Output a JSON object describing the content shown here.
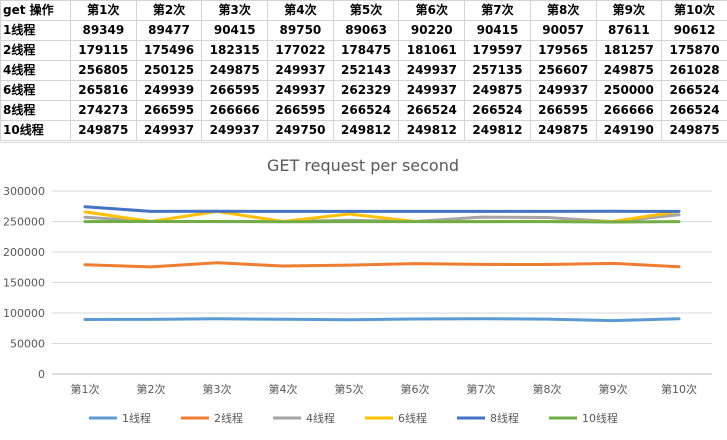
{
  "table": {
    "corner": "get 操作",
    "columns": [
      "第1次",
      "第2次",
      "第3次",
      "第4次",
      "第5次",
      "第6次",
      "第7次",
      "第8次",
      "第9次",
      "第10次"
    ],
    "rows": [
      {
        "label": "1线程",
        "values": [
          "89349",
          "89477",
          "90415",
          "89750",
          "89063",
          "90220",
          "90415",
          "90057",
          "87611",
          "90612"
        ]
      },
      {
        "label": "2线程",
        "values": [
          "179115",
          "175496",
          "182315",
          "177022",
          "178475",
          "181061",
          "179597",
          "179565",
          "181257",
          "175870"
        ]
      },
      {
        "label": "4线程",
        "values": [
          "256805",
          "250125",
          "249875",
          "249937",
          "252143",
          "249937",
          "257135",
          "256607",
          "249875",
          "261028"
        ]
      },
      {
        "label": "6线程",
        "values": [
          "265816",
          "249939",
          "266595",
          "249937",
          "262329",
          "249937",
          "249875",
          "249937",
          "250000",
          "266524"
        ]
      },
      {
        "label": "8线程",
        "values": [
          "274273",
          "266595",
          "266666",
          "266595",
          "266524",
          "266524",
          "266524",
          "266595",
          "266666",
          "266524"
        ]
      },
      {
        "label": "10线程",
        "values": [
          "249875",
          "249937",
          "249937",
          "249750",
          "249812",
          "249812",
          "249812",
          "249875",
          "249190",
          "249875"
        ]
      }
    ]
  },
  "chart_data": {
    "type": "line",
    "title": "GET request per second",
    "categories": [
      "第1次",
      "第2次",
      "第3次",
      "第4次",
      "第5次",
      "第6次",
      "第7次",
      "第8次",
      "第9次",
      "第10次"
    ],
    "ylim": [
      0,
      300000
    ],
    "yticks": [
      0,
      50000,
      100000,
      150000,
      200000,
      250000,
      300000
    ],
    "ytick_labels": [
      "0",
      "50000",
      "100000",
      "150000",
      "200000",
      "250000",
      "300000"
    ],
    "grid": true,
    "legend_position": "bottom",
    "series": [
      {
        "name": "1线程",
        "color": "#5B9BD5",
        "values": [
          89349,
          89477,
          90415,
          89750,
          89063,
          90220,
          90415,
          90057,
          87611,
          90612
        ]
      },
      {
        "name": "2线程",
        "color": "#ED7D31",
        "values": [
          179115,
          175496,
          182315,
          177022,
          178475,
          181061,
          179597,
          179565,
          181257,
          175870
        ]
      },
      {
        "name": "4线程",
        "color": "#A5A5A5",
        "values": [
          256805,
          250125,
          249875,
          249937,
          252143,
          249937,
          257135,
          256607,
          249875,
          261028
        ]
      },
      {
        "name": "6线程",
        "color": "#FFC000",
        "values": [
          265816,
          249939,
          266595,
          249937,
          262329,
          249937,
          249875,
          249937,
          250000,
          266524
        ]
      },
      {
        "name": "8线程",
        "color": "#4472C4",
        "values": [
          274273,
          266595,
          266666,
          266595,
          266524,
          266524,
          266524,
          266595,
          266666,
          266524
        ]
      },
      {
        "name": "10线程",
        "color": "#70AD47",
        "values": [
          249875,
          249937,
          249937,
          249750,
          249812,
          249812,
          249812,
          249875,
          249190,
          249875
        ]
      }
    ]
  }
}
